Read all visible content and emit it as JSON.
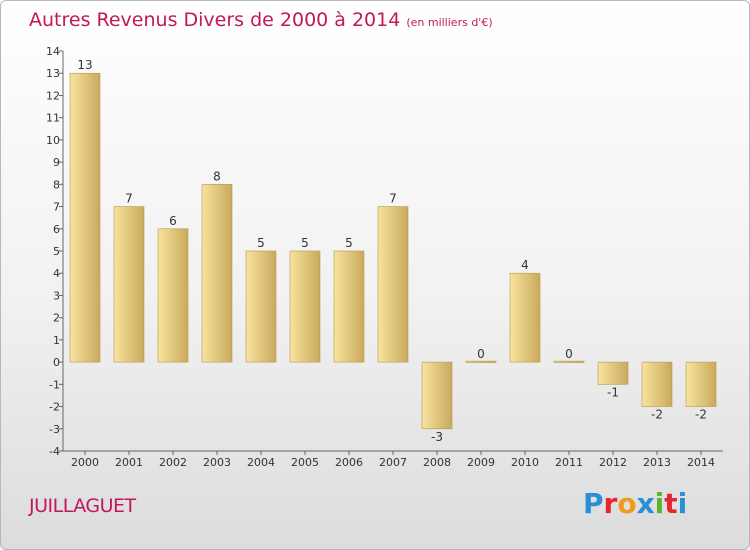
{
  "header": {
    "title": "Autres Revenus Divers de 2000 à 2014",
    "unit": "(en milliers d'€)"
  },
  "footer": {
    "commune": "JUILLAGUET",
    "brand_letters": [
      "P",
      "r",
      "o",
      "x",
      "i",
      "t",
      "i"
    ],
    "brand_colors": [
      "#2a8fd6",
      "#e6262e",
      "#f29a1d",
      "#2a8fd6",
      "#5bb431",
      "#e6262e",
      "#2a8fd6"
    ]
  },
  "chart_data": {
    "type": "bar",
    "categories": [
      "2000",
      "2001",
      "2002",
      "2003",
      "2004",
      "2005",
      "2006",
      "2007",
      "2008",
      "2009",
      "2010",
      "2011",
      "2012",
      "2013",
      "2014"
    ],
    "values": [
      13,
      7,
      6,
      8,
      5,
      5,
      5,
      7,
      -3,
      0,
      4,
      0,
      -1,
      -2,
      -2
    ],
    "data_labels": [
      "13",
      "7",
      "6",
      "8",
      "5",
      "5",
      "5",
      "7",
      "-3",
      "0",
      "4",
      "0",
      "-1",
      "-2",
      "-2"
    ],
    "ylim": [
      -4,
      14
    ],
    "yticks": [
      "-4",
      "-3",
      "-2",
      "-1",
      "0",
      "1",
      "2",
      "3",
      "4",
      "5",
      "6",
      "7",
      "8",
      "9",
      "10",
      "11",
      "12",
      "13",
      "14"
    ],
    "grid": false,
    "bar_colors": {
      "light": "#f8e3a0",
      "dark": "#c8aa5c",
      "edge": "#b89a4c"
    }
  }
}
